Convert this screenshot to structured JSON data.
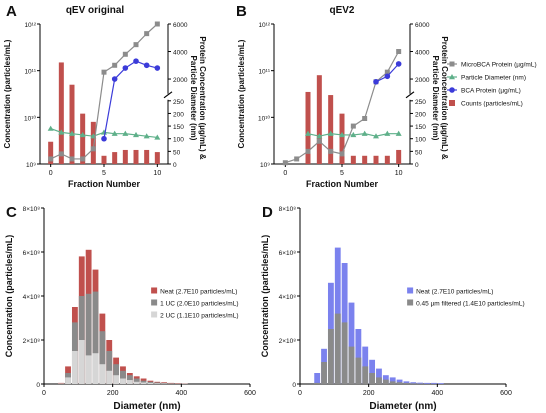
{
  "panels": {
    "A": {
      "letter": "A",
      "title": "qEV original"
    },
    "B": {
      "letter": "B",
      "title": "qEV2"
    },
    "C": {
      "letter": "C"
    },
    "D": {
      "letter": "D"
    }
  },
  "colors": {
    "counts": "#c0504d",
    "microbca": "#8c8c8c",
    "diameter": "#5fb08a",
    "bca": "#3b3bd9",
    "neat_d": "#7b82ee",
    "uc1": "#8a8a8a",
    "uc2": "#d6d6d6"
  },
  "top_legend": [
    {
      "label": "MicroBCA Protein (µg/mL)",
      "marker": "square",
      "color": "#8c8c8c"
    },
    {
      "label": "Particle Diameter (nm)",
      "marker": "triangle",
      "color": "#5fb08a"
    },
    {
      "label": "BCA Protein (µg/mL)",
      "marker": "circle",
      "color": "#3b3bd9"
    },
    {
      "label": "Counts (particles/mL)",
      "marker": "bar",
      "color": "#c0504d"
    }
  ],
  "chart_data": [
    {
      "panel": "A",
      "type": "bar+line",
      "title": "qEV original",
      "xlabel": "Fraction Number",
      "ylabel_left": "Concentration (particles/mL)",
      "ylabel_right": "Protein Concentration (µg/mL) & Particle Diameter (nm)",
      "x_ticks": [
        "0",
        "5",
        "10"
      ],
      "xlim": [
        -1,
        11
      ],
      "y_left_log": true,
      "y_left_ticks": [
        "10⁹",
        "10¹⁰",
        "10¹¹",
        "10¹²"
      ],
      "y_left_lim": [
        1000000000.0,
        1000000000000.0
      ],
      "y_right_ticks_low": [
        "0",
        "50",
        "100",
        "150",
        "200",
        "250"
      ],
      "y_right_ticks_high": [
        "2000",
        "4000",
        "6000"
      ],
      "y_right_axis_break": [
        250,
        1000
      ],
      "counts": {
        "x": [
          0,
          1,
          2,
          3,
          4,
          5,
          6,
          7,
          8,
          9,
          10
        ],
        "values": [
          3000000000.0,
          150000000000.0,
          50000000000.0,
          12000000000.0,
          8000000000.0,
          1500000000.0,
          1800000000.0,
          2000000000.0,
          2000000000.0,
          2000000000.0,
          1800000000.0
        ]
      },
      "microbca": {
        "x": [
          0,
          1,
          2,
          3,
          4,
          5,
          6,
          7,
          8,
          9,
          10
        ],
        "values": [
          20,
          40,
          20,
          20,
          60,
          2500,
          3000,
          3800,
          4500,
          5300,
          6000
        ]
      },
      "bca": {
        "x": [
          5,
          6,
          7,
          8,
          9,
          10
        ],
        "values": [
          100,
          2000,
          2800,
          3300,
          3000,
          2800
        ]
      },
      "diameter": {
        "x": [
          0,
          1,
          2,
          3,
          4,
          5,
          6,
          7,
          8,
          9,
          10
        ],
        "values": [
          140,
          125,
          120,
          115,
          110,
          125,
          120,
          120,
          115,
          110,
          105
        ]
      }
    },
    {
      "panel": "B",
      "type": "bar+line",
      "title": "qEV2",
      "xlabel": "Fraction Number",
      "ylabel_left": "Concentration (particles/mL)",
      "ylabel_right": "Protein Concentration (µg/mL) & Particle Diameter (nm)",
      "x_ticks": [
        "0",
        "5",
        "10"
      ],
      "xlim": [
        -1,
        11
      ],
      "y_left_log": true,
      "y_left_ticks": [
        "10⁹",
        "10¹⁰",
        "10¹¹",
        "10¹²"
      ],
      "y_left_lim": [
        1000000000.0,
        1000000000000.0
      ],
      "y_right_ticks_low": [
        "0",
        "50",
        "100",
        "150",
        "200",
        "250"
      ],
      "y_right_ticks_high": [
        "2000",
        "4000",
        "6000"
      ],
      "y_right_axis_break": [
        250,
        1000
      ],
      "counts": {
        "x": [
          2,
          3,
          4,
          5,
          6,
          7,
          8,
          9,
          10
        ],
        "values": [
          35000000000.0,
          80000000000.0,
          30000000000.0,
          12000000000.0,
          1500000000.0,
          1500000000.0,
          1500000000.0,
          1500000000.0,
          2000000000.0
        ]
      },
      "microbca": {
        "x": [
          0,
          1,
          2,
          3,
          4,
          5,
          6,
          7,
          8,
          9,
          10
        ],
        "values": [
          5,
          20,
          50,
          90,
          50,
          40,
          150,
          180,
          1800,
          2500,
          4000
        ]
      },
      "bca": {
        "x": [
          8,
          9,
          10
        ],
        "values": [
          1800,
          2200,
          3100
        ]
      },
      "diameter": {
        "x": [
          2,
          3,
          4,
          5,
          6,
          7,
          8,
          9,
          10
        ],
        "values": [
          120,
          110,
          120,
          115,
          115,
          120,
          110,
          120,
          120
        ]
      }
    },
    {
      "panel": "C",
      "type": "bar",
      "xlabel": "Diameter (nm)",
      "ylabel": "Concentration (particles/mL)",
      "x_ticks": [
        "0",
        "200",
        "400",
        "600"
      ],
      "xlim": [
        0,
        600
      ],
      "y_ticks": [
        "0",
        "2×10⁸",
        "4×10⁸",
        "6×10⁸",
        "8×10⁸"
      ],
      "ylim": [
        0,
        800000000.0
      ],
      "bin_centers": [
        50,
        70,
        90,
        110,
        130,
        150,
        170,
        190,
        210,
        230,
        250,
        270,
        290,
        310,
        330,
        350,
        370,
        390,
        410
      ],
      "series": [
        {
          "name": "Neat (2.7E10 particles/mL)",
          "color": "#c0504d",
          "values": [
            5000000.0,
            80000000.0,
            350000000.0,
            580000000.0,
            610000000.0,
            520000000.0,
            320000000.0,
            200000000.0,
            120000000.0,
            80000000.0,
            50000000.0,
            35000000.0,
            25000000.0,
            15000000.0,
            10000000.0,
            8000000.0,
            5000000.0,
            4000000.0,
            2000000.0
          ]
        },
        {
          "name": "1 UC (2.0E10 particles/mL)",
          "color": "#8a8a8a",
          "values": [
            3000000.0,
            50000000.0,
            280000000.0,
            400000000.0,
            410000000.0,
            420000000.0,
            240000000.0,
            150000000.0,
            90000000.0,
            60000000.0,
            40000000.0,
            25000000.0,
            15000000.0,
            10000000.0,
            7000000.0,
            5000000.0,
            3000000.0,
            2000000.0,
            1000000.0
          ]
        },
        {
          "name": "2 UC (1.1E10 particles/mL)",
          "color": "#d6d6d6",
          "values": [
            2000000.0,
            30000000.0,
            150000000.0,
            200000000.0,
            130000000.0,
            140000000.0,
            90000000.0,
            60000000.0,
            40000000.0,
            25000000.0,
            18000000.0,
            10000000.0,
            7000000.0,
            5000000.0,
            3000000.0,
            2000000.0,
            1000000.0,
            1000000.0,
            500000.0
          ]
        }
      ],
      "legend_position": "right"
    },
    {
      "panel": "D",
      "type": "bar",
      "xlabel": "Diameter (nm)",
      "ylabel": "Concentration (particles/mL)",
      "x_ticks": [
        "0",
        "200",
        "400",
        "600"
      ],
      "xlim": [
        0,
        600
      ],
      "y_ticks": [
        "0",
        "2×10⁸",
        "4×10⁸",
        "6×10⁸",
        "8×10⁸"
      ],
      "ylim": [
        0,
        800000000.0
      ],
      "bin_centers": [
        50,
        70,
        90,
        110,
        130,
        150,
        170,
        190,
        210,
        230,
        250,
        270,
        290,
        310,
        330,
        350,
        370,
        390,
        410
      ],
      "series": [
        {
          "name": "Neat (2.7E10 particles/mL)",
          "color": "#7b82ee",
          "values": [
            50000000.0,
            160000000.0,
            460000000.0,
            620000000.0,
            550000000.0,
            370000000.0,
            250000000.0,
            170000000.0,
            110000000.0,
            70000000.0,
            40000000.0,
            30000000.0,
            20000000.0,
            12000000.0,
            8000000.0,
            6000000.0,
            5000000.0,
            5000000.0,
            4000000.0
          ]
        },
        {
          "name": "0.45 µm filtered (1.4E10 particles/mL)",
          "color": "#8a8a8a",
          "values": [
            5000000.0,
            100000000.0,
            250000000.0,
            320000000.0,
            280000000.0,
            170000000.0,
            120000000.0,
            80000000.0,
            50000000.0,
            30000000.0,
            20000000.0,
            12000000.0,
            8000000.0,
            5000000.0,
            3000000.0,
            2000000.0,
            1000000.0,
            1000000.0,
            500000.0
          ]
        }
      ],
      "legend_position": "right"
    }
  ]
}
